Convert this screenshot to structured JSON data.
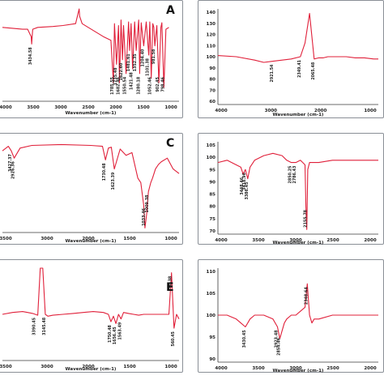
{
  "figure": {
    "colors": {
      "line": "#e0203a",
      "axis": "#3a3a3a",
      "label": "#222222",
      "frame": "#8a8f96"
    }
  },
  "chart_data": [
    {
      "type": "line",
      "panel": "A",
      "letter": "A",
      "xlabel": "Wavenumber (cm-1)",
      "xlim": [
        4000,
        500
      ],
      "ylim": [
        0,
        100
      ],
      "xticks": [
        "4000",
        "3500",
        "3000",
        "2500",
        "2000",
        "1500",
        "1000"
      ],
      "yticks": [],
      "x": [
        4000,
        3800,
        3600,
        3500,
        3430,
        3420,
        3410,
        3400,
        3300,
        3000,
        2800,
        2550,
        2480,
        2470,
        2420,
        2300,
        2000,
        1850,
        1800,
        1780,
        1740,
        1700,
        1680,
        1650,
        1620,
        1600,
        1550,
        1500,
        1480,
        1450,
        1420,
        1380,
        1350,
        1300,
        1280,
        1250,
        1200,
        1150,
        1100,
        1080,
        1050,
        1020,
        1000,
        980,
        940,
        900,
        860,
        840,
        800,
        760,
        700
      ],
      "y": [
        80,
        79,
        78,
        78,
        70,
        62,
        70,
        78,
        80,
        81,
        82,
        84,
        100,
        92,
        84,
        80,
        70,
        66,
        20,
        84,
        40,
        82,
        20,
        88,
        45,
        82,
        30,
        86,
        55,
        84,
        35,
        86,
        55,
        88,
        30,
        85,
        60,
        86,
        50,
        86,
        25,
        84,
        80,
        60,
        82,
        20,
        80,
        85,
        15,
        78,
        80
      ],
      "peak_labels": [
        {
          "x": 3420,
          "y": 62,
          "text": "3434.58"
        },
        {
          "x": 1800,
          "y": 20,
          "text": "1785.55"
        },
        {
          "x": 1740,
          "y": 40,
          "text": "1735.48"
        },
        {
          "x": 1680,
          "y": 20,
          "text": "1682.46"
        },
        {
          "x": 1620,
          "y": 45,
          "text": "1622.60"
        },
        {
          "x": 1550,
          "y": 30,
          "text": "1550.54"
        },
        {
          "x": 1480,
          "y": 55,
          "text": "1481.61"
        },
        {
          "x": 1420,
          "y": 35,
          "text": "1421.48"
        },
        {
          "x": 1350,
          "y": 55,
          "text": "1352.35"
        },
        {
          "x": 1280,
          "y": 30,
          "text": "1280.18"
        },
        {
          "x": 1200,
          "y": 60,
          "text": "1204.40"
        },
        {
          "x": 1100,
          "y": 50,
          "text": "1101.38"
        },
        {
          "x": 1050,
          "y": 25,
          "text": "1052.46"
        },
        {
          "x": 980,
          "y": 60,
          "text": "981.58"
        },
        {
          "x": 900,
          "y": 20,
          "text": "902.45"
        },
        {
          "x": 800,
          "y": 15,
          "text": "798.46"
        }
      ]
    },
    {
      "type": "line",
      "panel": "B",
      "letter": "",
      "xlabel": "Wavenumber (cm-1)",
      "xlim": [
        4000,
        500
      ],
      "ylim": [
        58,
        142
      ],
      "xticks": [
        "4000",
        "3000",
        "2000",
        "1000"
      ],
      "yticks": [
        "140",
        "130",
        "120",
        "110",
        "100",
        "90",
        "80",
        "70",
        "60"
      ],
      "x": [
        4000,
        3600,
        3200,
        3000,
        2800,
        2600,
        2400,
        2200,
        2100,
        2000,
        1900,
        1800,
        1700,
        1600,
        1400,
        1200,
        1000,
        800,
        600,
        500
      ],
      "y": [
        101,
        100,
        97,
        95,
        96,
        97,
        98,
        100,
        112,
        138,
        98,
        99,
        99,
        100,
        100,
        100,
        99,
        99,
        98,
        98
      ],
      "peak_labels": [
        {
          "x": 2800,
          "y": 96,
          "text": "2921.54"
        },
        {
          "x": 2200,
          "y": 100,
          "text": "2349.41"
        },
        {
          "x": 1900,
          "y": 98,
          "text": "2065.48"
        }
      ]
    },
    {
      "type": "line",
      "panel": "C",
      "letter": "C",
      "xlabel": "Wavenumber (cm-1)",
      "xlim": [
        3500,
        500
      ],
      "ylim": [
        0,
        100
      ],
      "xticks": [
        "3500",
        "3000",
        "2000",
        "1500",
        "1000"
      ],
      "yticks": [],
      "x": [
        3500,
        3400,
        3350,
        3300,
        3200,
        3000,
        2500,
        2000,
        1800,
        1750,
        1700,
        1650,
        1600,
        1500,
        1400,
        1300,
        1200,
        1150,
        1100,
        1080,
        1050,
        1020,
        980,
        950,
        900,
        850,
        800,
        700,
        600,
        500
      ],
      "y": [
        90,
        95,
        90,
        82,
        93,
        96,
        97,
        96,
        95,
        80,
        93,
        94,
        70,
        92,
        85,
        88,
        60,
        55,
        30,
        5,
        20,
        45,
        55,
        60,
        70,
        75,
        78,
        82,
        70,
        65
      ],
      "peak_labels": [
        {
          "x": 3350,
          "y": 90,
          "text": "3427.37"
        },
        {
          "x": 3300,
          "y": 82,
          "text": "2926.36"
        },
        {
          "x": 1750,
          "y": 80,
          "text": "1730.48"
        },
        {
          "x": 1600,
          "y": 70,
          "text": "1623.39"
        },
        {
          "x": 1080,
          "y": 5,
          "text": "1033.46"
        },
        {
          "x": 1020,
          "y": 45,
          "text": "1009.38"
        }
      ]
    },
    {
      "type": "line",
      "panel": "D",
      "letter": "",
      "xlabel": "Wavenumber (cm-1)",
      "xlim": [
        4000,
        500
      ],
      "ylim": [
        68,
        108
      ],
      "xticks": [
        "4000",
        "3500",
        "3000",
        "2500",
        "2000"
      ],
      "yticks": [
        "105",
        "100",
        "95",
        "90",
        "85",
        "80",
        "75",
        "70"
      ],
      "x": [
        4000,
        3800,
        3600,
        3500,
        3450,
        3400,
        3350,
        3300,
        3200,
        3000,
        2800,
        2600,
        2500,
        2400,
        2300,
        2200,
        2150,
        2100,
        2080,
        2060,
        2040,
        2000,
        1800,
        1500,
        1000,
        500
      ],
      "y": [
        99,
        100,
        98,
        97,
        94,
        96,
        92,
        97,
        100,
        102,
        103,
        102,
        100,
        99,
        99,
        100,
        99,
        98,
        80,
        70,
        96,
        99,
        99,
        100,
        100,
        100
      ],
      "peak_labels": [
        {
          "x": 3450,
          "y": 94,
          "text": "3448.46"
        },
        {
          "x": 3400,
          "y": 96,
          "text": "3418.96"
        },
        {
          "x": 3350,
          "y": 92,
          "text": "3386.45"
        },
        {
          "x": 2400,
          "y": 99,
          "text": "2850.25"
        },
        {
          "x": 2300,
          "y": 99,
          "text": "2786.43"
        },
        {
          "x": 2060,
          "y": 70,
          "text": "2155.78"
        }
      ]
    },
    {
      "type": "line",
      "panel": "E",
      "letter": "E",
      "xlabel": "Wavenumber (cm-1)",
      "xlim": [
        4000,
        500
      ],
      "ylim": [
        0,
        100
      ],
      "xticks": [
        "3500",
        "3000",
        "2000",
        "1500",
        "1000"
      ],
      "yticks": [],
      "x": [
        4000,
        3800,
        3600,
        3500,
        3400,
        3350,
        3300,
        3250,
        3200,
        3150,
        3100,
        3000,
        2800,
        2600,
        2400,
        2200,
        2000,
        1900,
        1850,
        1800,
        1750,
        1700,
        1650,
        1600,
        1500,
        1400,
        1300,
        1200,
        1000,
        800,
        700,
        650,
        600,
        550,
        500
      ],
      "y": [
        50,
        52,
        53,
        52,
        51,
        50,
        49,
        100,
        100,
        50,
        48,
        49,
        50,
        51,
        52,
        53,
        52,
        50,
        42,
        48,
        40,
        50,
        45,
        52,
        51,
        50,
        49,
        50,
        50,
        50,
        50,
        95,
        35,
        50,
        45
      ],
      "peak_labels": [
        {
          "x": 3350,
          "y": 50,
          "text": "3390.45"
        },
        {
          "x": 3150,
          "y": 50,
          "text": "3145.48"
        },
        {
          "x": 1850,
          "y": 42,
          "text": "1750.48"
        },
        {
          "x": 1750,
          "y": 40,
          "text": "1656.45"
        },
        {
          "x": 1650,
          "y": 45,
          "text": "1563.49"
        },
        {
          "x": 650,
          "y": 95,
          "text": "790.38"
        },
        {
          "x": 600,
          "y": 35,
          "text": "560.45"
        }
      ]
    },
    {
      "type": "line",
      "panel": "F",
      "letter": "",
      "xlabel": "Wavenumber (cm-1)",
      "xlim": [
        4000,
        500
      ],
      "ylim": [
        88,
        112
      ],
      "xticks": [
        "4000",
        "3500",
        "3000",
        "2500",
        "2000"
      ],
      "yticks": [
        "110",
        "105",
        "100",
        "95",
        "90"
      ],
      "x": [
        4000,
        3800,
        3600,
        3500,
        3400,
        3350,
        3300,
        3200,
        3000,
        2800,
        2700,
        2650,
        2600,
        2550,
        2500,
        2400,
        2300,
        2200,
        2100,
        2050,
        2000,
        1950,
        1900,
        1800,
        1500,
        1000,
        500
      ],
      "y": [
        100,
        100,
        99,
        98,
        97,
        98,
        99,
        100,
        100,
        99,
        97,
        94,
        96,
        98,
        99,
        100,
        100,
        101,
        102,
        108,
        100,
        98,
        99,
        99,
        100,
        100,
        100
      ],
      "peak_labels": [
        {
          "x": 3400,
          "y": 97,
          "text": "3430.45"
        },
        {
          "x": 2700,
          "y": 97,
          "text": "2923.48"
        },
        {
          "x": 2650,
          "y": 94,
          "text": "2854.46"
        },
        {
          "x": 2050,
          "y": 108,
          "text": "2348.64"
        }
      ]
    }
  ]
}
